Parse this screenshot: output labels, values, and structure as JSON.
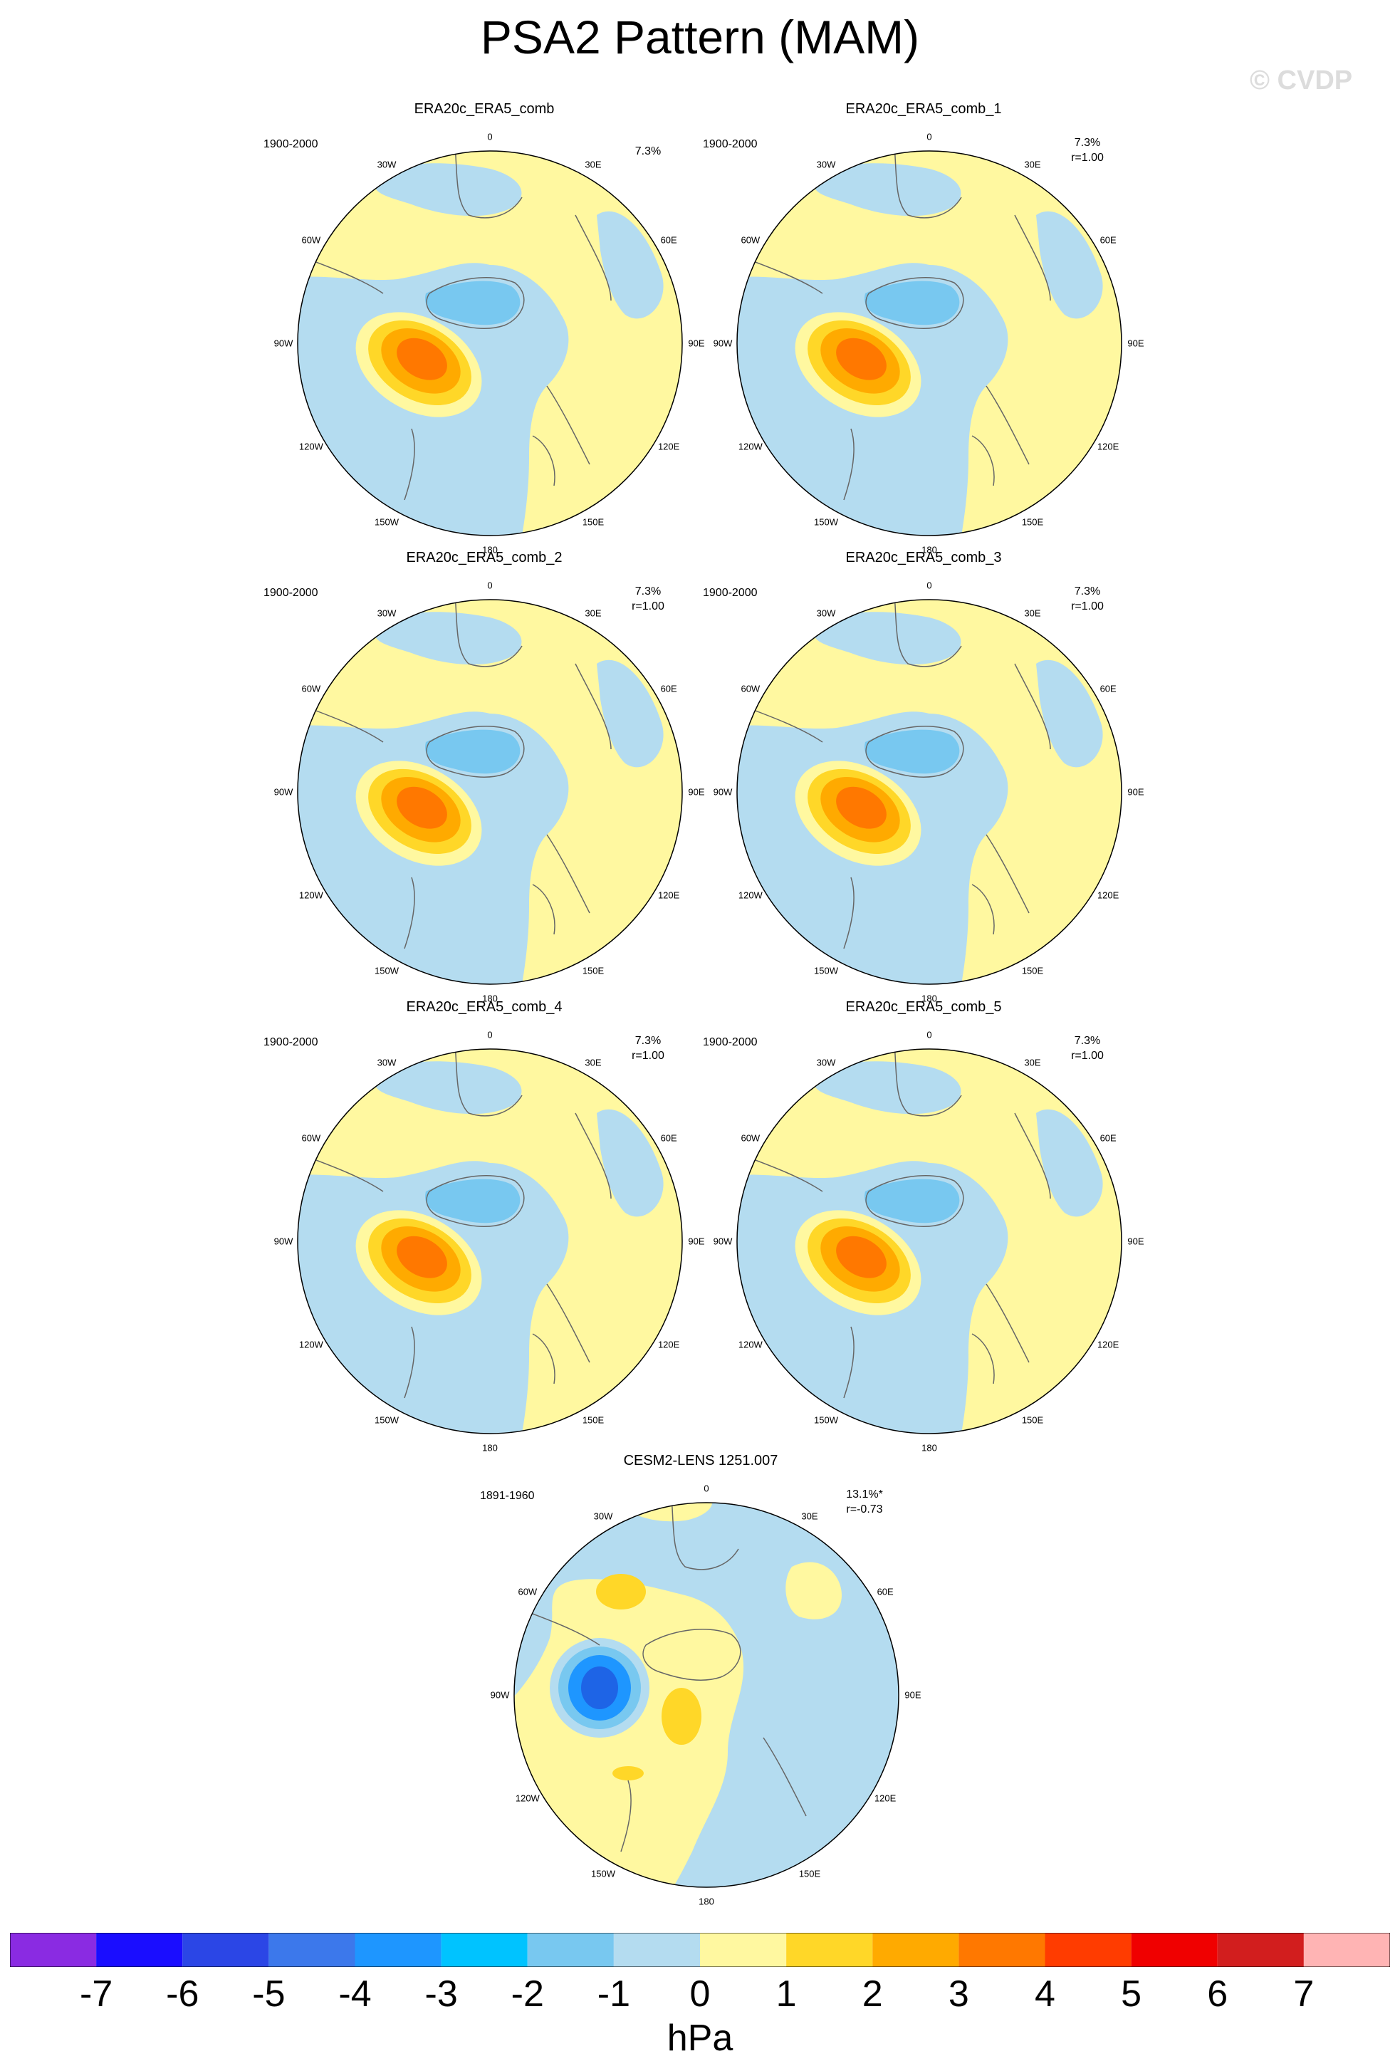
{
  "title": "PSA2 Pattern (MAM)",
  "watermark": "© CVDP",
  "lon_labels": [
    "0",
    "30E",
    "60E",
    "90E",
    "120E",
    "150E",
    "180",
    "150W",
    "120W",
    "90W",
    "60W",
    "30W"
  ],
  "panels": [
    {
      "title": "ERA20c_ERA5_comb",
      "period": "1900-2000",
      "pct": "7.3%",
      "corr": ""
    },
    {
      "title": "ERA20c_ERA5_comb_1",
      "period": "1900-2000",
      "pct": "7.3%",
      "corr": "r=1.00"
    },
    {
      "title": "ERA20c_ERA5_comb_2",
      "period": "1900-2000",
      "pct": "7.3%",
      "corr": "r=1.00"
    },
    {
      "title": "ERA20c_ERA5_comb_3",
      "period": "1900-2000",
      "pct": "7.3%",
      "corr": "r=1.00"
    },
    {
      "title": "ERA20c_ERA5_comb_4",
      "period": "1900-2000",
      "pct": "7.3%",
      "corr": "r=1.00"
    },
    {
      "title": "ERA20c_ERA5_comb_5",
      "period": "1900-2000",
      "pct": "7.3%",
      "corr": "r=1.00"
    },
    {
      "title": "CESM2-LENS 1251.007",
      "period": "1891-1960",
      "pct": "13.1%*",
      "corr": "r=-0.73"
    }
  ],
  "colorbar": {
    "colors": [
      "#8a2be2",
      "#1a0dff",
      "#2b46e6",
      "#3c78eb",
      "#1e96ff",
      "#00c3ff",
      "#78c8f0",
      "#b4dcf0",
      "#fff8a0",
      "#ffd728",
      "#ffaa00",
      "#ff7800",
      "#ff3c00",
      "#f00000",
      "#d21e1e",
      "#ffb4b4"
    ],
    "ticks": [
      "-7",
      "-6",
      "-5",
      "-4",
      "-3",
      "-2",
      "-1",
      "0",
      "1",
      "2",
      "3",
      "4",
      "5",
      "6",
      "7"
    ],
    "units": "hPa"
  },
  "map_colors": {
    "neg1": "#b4dcf0",
    "pos1": "#fff8a0",
    "pos2": "#ffd728",
    "pos3": "#ffaa00",
    "pos4": "#ff7800",
    "neg2": "#78c8f0",
    "neg3": "#1e96ff",
    "neg4": "#1e64e6",
    "coast": "#666666"
  }
}
